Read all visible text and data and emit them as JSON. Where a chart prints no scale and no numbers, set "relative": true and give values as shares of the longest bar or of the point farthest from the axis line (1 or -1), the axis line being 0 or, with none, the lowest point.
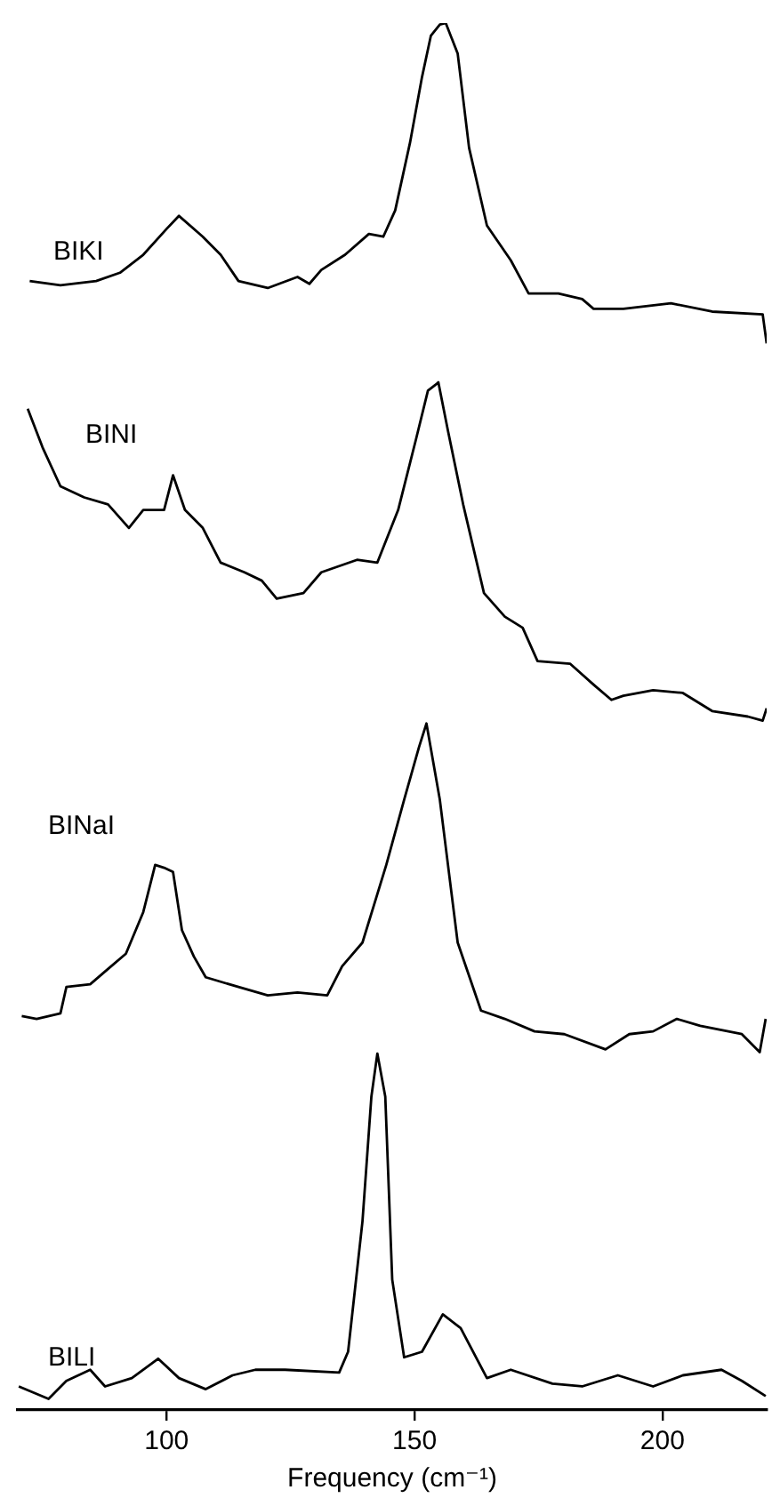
{
  "chart_data": {
    "type": "line",
    "relative": true,
    "xlim": [
      70,
      221
    ],
    "xticks": [
      100,
      150,
      200
    ],
    "xlabel": "Frequency (cm⁻¹)",
    "series": [
      {
        "name": "BIKI",
        "color": "#000000",
        "x": [
          72.4,
          78.6,
          85.8,
          90.6,
          95.3,
          100.1,
          102.5,
          107.3,
          110.9,
          114.5,
          120.4,
          126.4,
          128.8,
          131.2,
          136.0,
          140.8,
          143.7,
          146.1,
          149.1,
          151.5,
          153.3,
          155.1,
          156.3,
          158.7,
          161.0,
          164.6,
          169.4,
          173.0,
          179.0,
          183.8,
          186.1,
          192.1,
          201.7,
          210.0,
          220.2,
          221.0
        ],
        "values": [
          0.814,
          0.811,
          0.814,
          0.82,
          0.833,
          0.852,
          0.861,
          0.846,
          0.833,
          0.814,
          0.809,
          0.817,
          0.812,
          0.822,
          0.833,
          0.848,
          0.846,
          0.865,
          0.914,
          0.961,
          0.991,
          0.999,
          1.0,
          0.978,
          0.91,
          0.854,
          0.829,
          0.805,
          0.805,
          0.801,
          0.794,
          0.794,
          0.798,
          0.792,
          0.79,
          0.769
        ]
      },
      {
        "name": "BINI",
        "color": "#000000",
        "x": [
          72.0,
          75.0,
          78.6,
          83.4,
          88.2,
          92.4,
          95.3,
          99.5,
          101.3,
          103.7,
          107.3,
          110.9,
          115.7,
          119.2,
          122.2,
          127.6,
          131.2,
          138.4,
          142.5,
          146.7,
          150.3,
          152.7,
          154.5,
          154.8,
          156.8,
          159.8,
          164.0,
          168.2,
          171.8,
          174.8,
          181.4,
          186.1,
          189.7,
          192.1,
          198.1,
          204.1,
          210.0,
          217.2,
          220.2,
          221.0
        ],
        "values": [
          0.722,
          0.694,
          0.666,
          0.658,
          0.653,
          0.636,
          0.649,
          0.649,
          0.674,
          0.649,
          0.636,
          0.611,
          0.604,
          0.598,
          0.585,
          0.589,
          0.604,
          0.613,
          0.611,
          0.649,
          0.7,
          0.735,
          0.74,
          0.741,
          0.705,
          0.653,
          0.589,
          0.572,
          0.564,
          0.54,
          0.538,
          0.523,
          0.512,
          0.515,
          0.519,
          0.517,
          0.504,
          0.5,
          0.497,
          0.506
        ]
      },
      {
        "name": "BINaI",
        "color": "#000000",
        "x": [
          70.8,
          73.8,
          78.6,
          79.8,
          84.6,
          88.2,
          91.8,
          95.3,
          97.7,
          99.5,
          101.3,
          103.1,
          105.5,
          107.9,
          114.5,
          120.4,
          126.4,
          132.4,
          135.4,
          139.5,
          144.3,
          147.9,
          150.9,
          152.4,
          155.1,
          158.7,
          163.4,
          168.2,
          174.2,
          180.2,
          188.5,
          193.3,
          198.1,
          202.9,
          207.6,
          216.0,
          219.6,
          220.8
        ],
        "values": [
          0.284,
          0.282,
          0.286,
          0.305,
          0.307,
          0.318,
          0.329,
          0.359,
          0.393,
          0.391,
          0.388,
          0.346,
          0.327,
          0.312,
          0.305,
          0.299,
          0.301,
          0.299,
          0.32,
          0.337,
          0.393,
          0.44,
          0.478,
          0.495,
          0.44,
          0.337,
          0.288,
          0.282,
          0.273,
          0.271,
          0.26,
          0.271,
          0.273,
          0.282,
          0.277,
          0.271,
          0.258,
          0.282
        ]
      },
      {
        "name": "BILI",
        "color": "#000000",
        "x": [
          70.2,
          76.2,
          79.8,
          84.6,
          87.6,
          93.0,
          98.3,
          102.5,
          107.9,
          113.3,
          117.9,
          123.9,
          134.8,
          136.6,
          139.5,
          141.3,
          142.5,
          144.1,
          145.5,
          147.9,
          151.5,
          155.7,
          159.3,
          164.6,
          169.4,
          177.8,
          183.8,
          191.0,
          198.1,
          204.1,
          211.9,
          216.0,
          220.8
        ],
        "values": [
          0.017,
          0.008,
          0.021,
          0.029,
          0.017,
          0.023,
          0.037,
          0.023,
          0.015,
          0.025,
          0.029,
          0.029,
          0.027,
          0.042,
          0.136,
          0.226,
          0.257,
          0.226,
          0.094,
          0.038,
          0.042,
          0.069,
          0.059,
          0.023,
          0.029,
          0.019,
          0.017,
          0.025,
          0.017,
          0.025,
          0.029,
          0.021,
          0.01
        ]
      }
    ]
  }
}
